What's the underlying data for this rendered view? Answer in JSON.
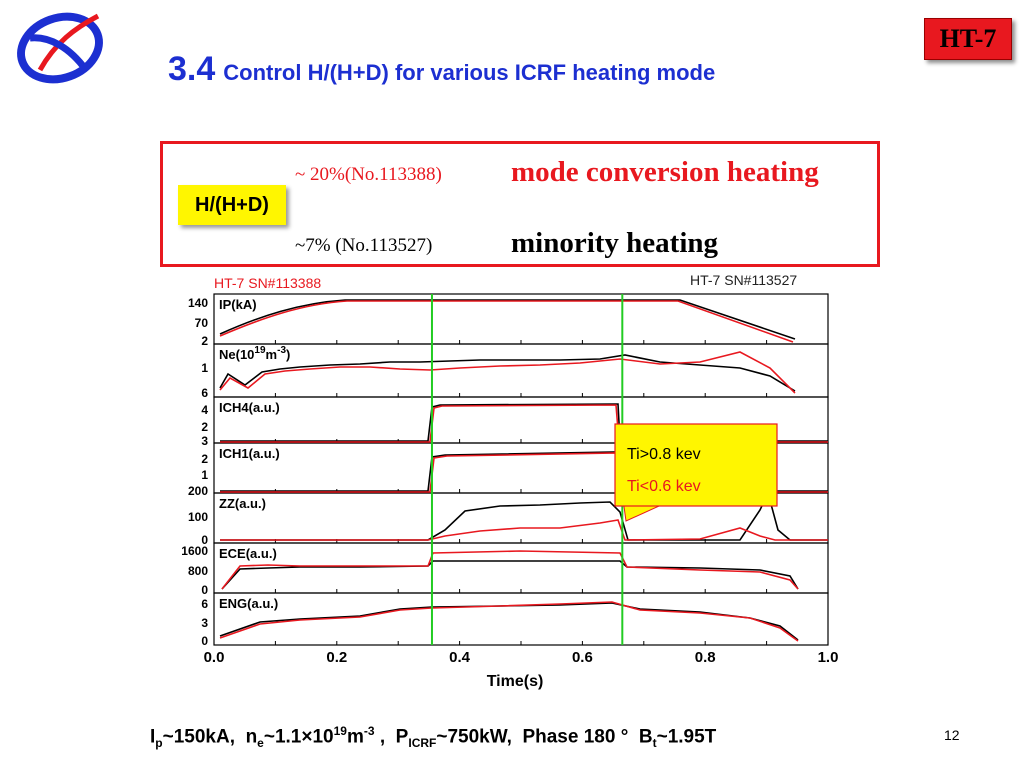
{
  "badge": "HT-7",
  "title": {
    "number": "3.4",
    "text": "Control H/(H+D) for various ICRF heating mode"
  },
  "modes": [
    {
      "ratio": "~ 20%(No.113388)",
      "label": "mode conversion heating",
      "color": "#e8181f"
    },
    {
      "ratio": "~7%    (No.113527)",
      "label": "minority heating",
      "color": "#000000"
    }
  ],
  "ratio_tag": "H/(H+D)",
  "shots": {
    "left": "HT-7 SN#113388",
    "right": "HT-7 SN#113527"
  },
  "footer": {
    "ip_base": "I",
    "ip_sub": "p",
    "ip_value": "~150kA,",
    "ne_base": "n",
    "ne_sub": "e",
    "ne_value": "~1.1×10",
    "ne_exp": "19",
    "ne_unit": "m",
    "ne_unit_exp": "-3",
    "ne_tail": " ,",
    "p_base": "P",
    "p_sub": "ICRF",
    "p_value": "~750kW,",
    "phase": "Phase 180 °",
    "bt_base": "B",
    "bt_sub": "t",
    "bt_value": "~1.95T"
  },
  "page_number": "12",
  "colors": {
    "shot_113388": "#e8181f",
    "shot_113527": "#000000",
    "marker": "#22cc22",
    "accent": "#1c2fd1",
    "highlight": "#fff600"
  },
  "chart_data": {
    "type": "line",
    "xlabel": "Time(s)",
    "xlim": [
      0.0,
      1.0
    ],
    "x_ticks": [
      "0.0",
      "0.2",
      "0.4",
      "0.6",
      "0.8",
      "1.0"
    ],
    "legend": [
      "HT-7 SN#113388",
      "HT-7 SN#113527"
    ],
    "markers_x": [
      0.355,
      0.665
    ],
    "annotation": {
      "lines": [
        "Ti>0.8 kev",
        "Ti<0.6 kev"
      ],
      "colors": [
        "#000000",
        "#e8181f"
      ]
    },
    "panels": [
      {
        "label": "IP(kA)",
        "ticks": [
          "140",
          "70",
          "2"
        ]
      },
      {
        "label": "Ne(10",
        "label_exp": "19",
        "label_unit": "m",
        "label_unit_exp": "-3",
        "label_close": ")",
        "ticks": [
          "1",
          "6"
        ]
      },
      {
        "label": "ICH4(a.u.)",
        "ticks": [
          "4",
          "2",
          "3"
        ]
      },
      {
        "label": "ICH1(a.u.)",
        "ticks": [
          "2",
          "1",
          "200"
        ]
      },
      {
        "label": "ZZ(a.u.)",
        "ticks": [
          "100",
          "0"
        ]
      },
      {
        "label": "ECE(a.u.)",
        "ticks": [
          "1600",
          "800",
          "0"
        ]
      },
      {
        "label": "ENG(a.u.)",
        "ticks": [
          "6",
          "3",
          "0"
        ]
      }
    ]
  }
}
